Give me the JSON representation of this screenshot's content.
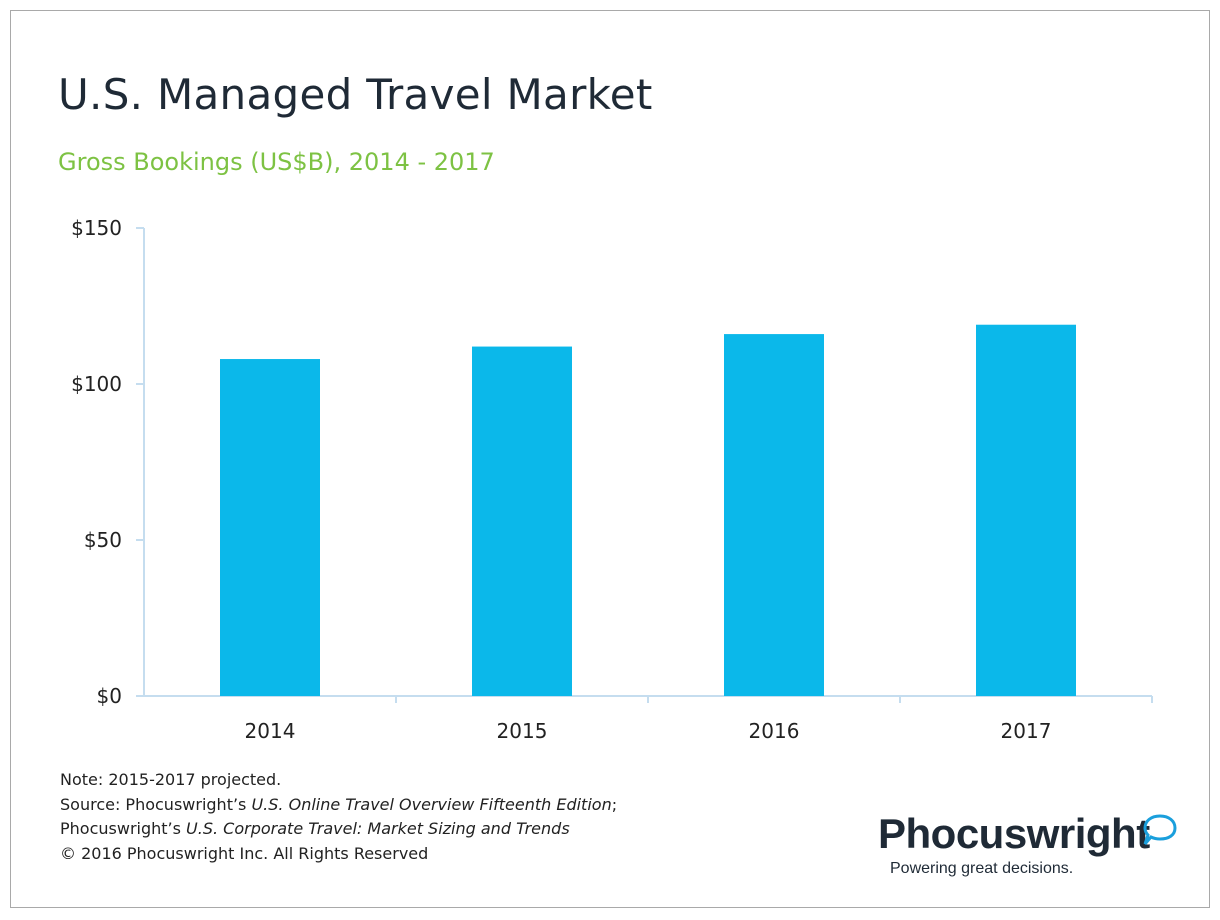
{
  "chart_data": {
    "type": "bar",
    "title": "U.S. Managed Travel Market",
    "subtitle": "Gross Bookings (US$B), 2014 - 2017",
    "categories": [
      "2014",
      "2015",
      "2016",
      "2017"
    ],
    "values": [
      108,
      112,
      116,
      119
    ],
    "ylim": [
      0,
      150
    ],
    "y_ticks": [
      0,
      50,
      100,
      150
    ],
    "y_tick_labels": [
      "$0",
      "$50",
      "$100",
      "$150"
    ],
    "xlabel": "",
    "ylabel": "",
    "grid": false,
    "bar_color": "#0bb8ea"
  },
  "notes": {
    "line1": "Note: 2015-2017 projected.",
    "line2_prefix": "Source: Phocuswright’s ",
    "line2_title": "U.S. Online Travel Overview Fifteenth Edition",
    "line2_suffix": ";",
    "line3_prefix": "Phocuswright’s ",
    "line3_title": "U.S. Corporate Travel: Market Sizing and Trends",
    "line4": "© 2016 Phocuswright Inc. All Rights Reserved"
  },
  "logo": {
    "name": "Phocuswright",
    "tagline": "Powering great decisions.",
    "icon": "speech-bubble-icon",
    "accent_color": "#1a9fdc"
  }
}
